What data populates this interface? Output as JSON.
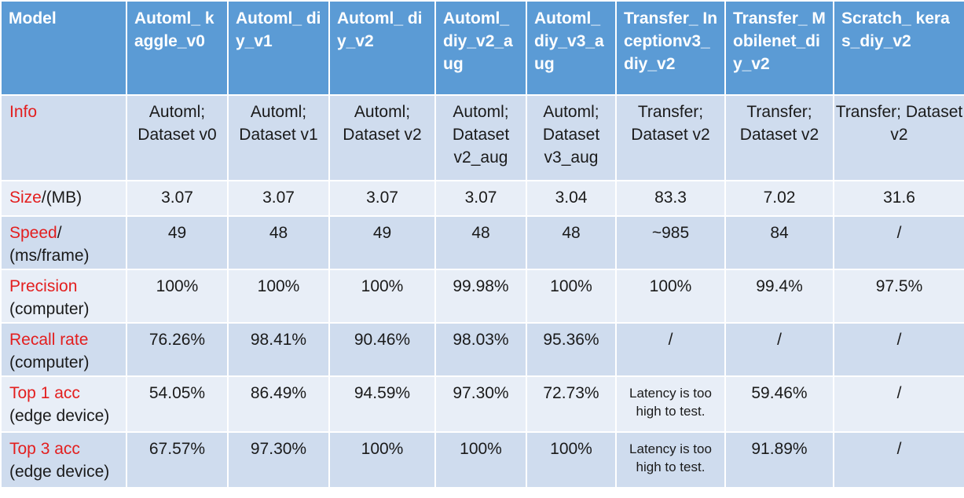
{
  "header": {
    "model": "Model",
    "columns": [
      "Automl_ kaggle_v0",
      "Automl_ diy_v1",
      "Automl_ diy_v2",
      "Automl_ diy_v2_aug",
      "Automl_ diy_v3_aug",
      "Transfer_ Inceptionv3_diy_v2",
      "Transfer_ Mobilenet_diy_v2",
      "Scratch_ keras_diy_v2"
    ]
  },
  "rows": {
    "info": {
      "label_red": "Info",
      "label_black": "",
      "values": [
        "Automl; Dataset v0",
        "Automl; Dataset v1",
        "Automl; Dataset v2",
        "Automl; Dataset v2_aug",
        "Automl; Dataset v3_aug",
        "Transfer; Dataset v2",
        "Transfer; Dataset v2",
        "Transfer; Dataset v2"
      ]
    },
    "size": {
      "label_red": "Size",
      "label_black": "/(MB)",
      "values": [
        "3.07",
        "3.07",
        "3.07",
        "3.07",
        "3.04",
        "83.3",
        "7.02",
        "31.6"
      ]
    },
    "speed": {
      "label_red": "Speed",
      "label_black": "/ (ms/frame)",
      "values": [
        "49",
        "48",
        "49",
        "48",
        "48",
        "~985",
        "84",
        "/"
      ]
    },
    "precision": {
      "label_red": "Precision",
      "label_black": "(computer)",
      "values": [
        "100%",
        "100%",
        "100%",
        "99.98%",
        "100%",
        "100%",
        "99.4%",
        "97.5%"
      ]
    },
    "recall": {
      "label_red": "Recall rate",
      "label_black": "(computer)",
      "values": [
        "76.26%",
        "98.41%",
        "90.46%",
        "98.03%",
        "95.36%",
        "/",
        "/",
        "/"
      ]
    },
    "top1": {
      "label_red": "Top 1 acc",
      "label_black": "(edge device)",
      "values": [
        "54.05%",
        "86.49%",
        "94.59%",
        "97.30%",
        "72.73%",
        "Latency is too high to test.",
        "59.46%",
        "/"
      ]
    },
    "top3": {
      "label_red": "Top 3 acc",
      "label_black": "(edge device)",
      "values": [
        "67.57%",
        "97.30%",
        "100%",
        "100%",
        "100%",
        "Latency is too high to test.",
        "91.89%",
        "/"
      ]
    }
  },
  "colors": {
    "header_bg": "#5b9bd5",
    "row_dark": "#cfdcee",
    "row_light": "#e8eef7",
    "label_red": "#e31e1e"
  }
}
